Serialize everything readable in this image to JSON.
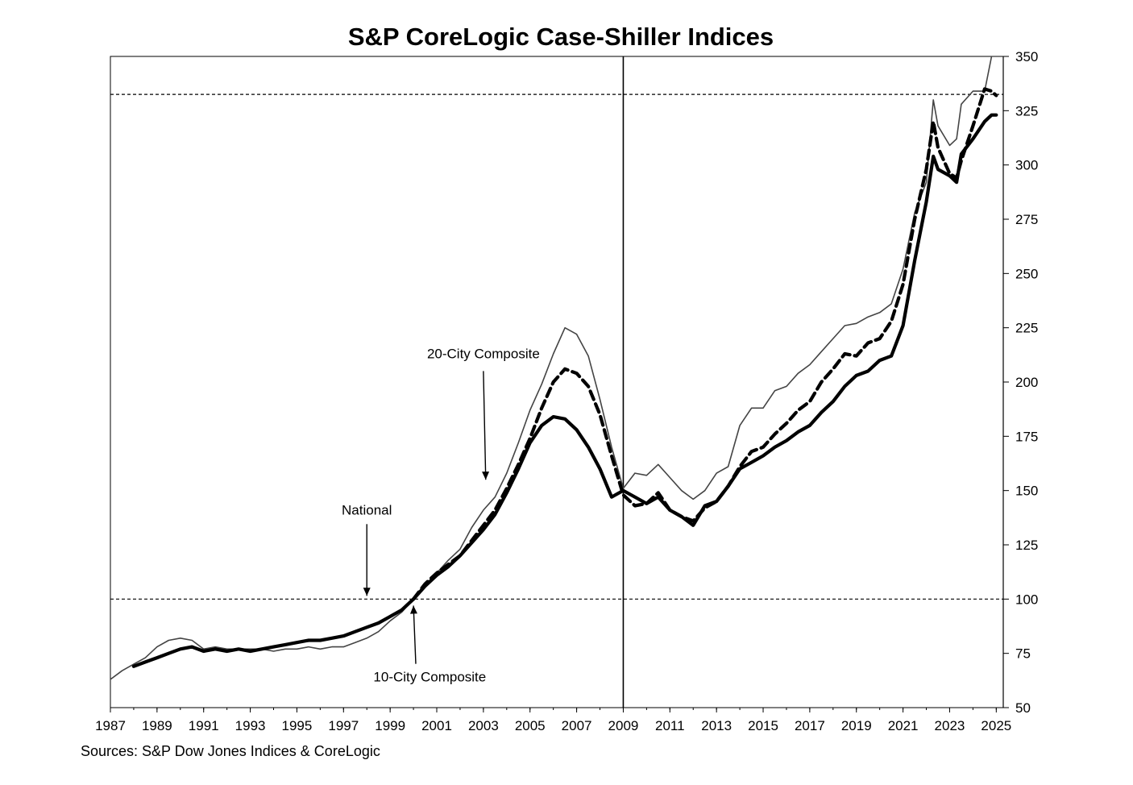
{
  "chart_data": {
    "type": "line",
    "title": "S&P CoreLogic Case-Shiller Indices",
    "source": "Sources:  S&P Dow Jones Indices & CoreLogic",
    "xlim": [
      1987,
      2025.3
    ],
    "ylim": [
      50,
      350
    ],
    "x_ticks": [
      "1987",
      "1989",
      "1991",
      "1993",
      "1995",
      "1997",
      "1999",
      "2001",
      "2003",
      "2005",
      "2007",
      "2009",
      "2011",
      "2013",
      "2015",
      "2017",
      "2019",
      "2021",
      "2023",
      "2025"
    ],
    "y_ticks": [
      "50",
      "75",
      "100",
      "125",
      "150",
      "175",
      "200",
      "225",
      "250",
      "275",
      "300",
      "325",
      "350"
    ],
    "grid": false,
    "reference_lines": [
      {
        "orientation": "horizontal",
        "y": 100,
        "style": "dashed"
      },
      {
        "orientation": "horizontal",
        "y": 332.5,
        "style": "dashed"
      },
      {
        "orientation": "vertical",
        "x": 2009,
        "style": "solid"
      }
    ],
    "annotations": [
      {
        "text": "20-City Composite",
        "x": 2003.0,
        "y": 211
      },
      {
        "text": "National",
        "x": 1998.0,
        "y": 139
      },
      {
        "text": "10-City Composite",
        "x": 2000.7,
        "y": 62
      }
    ],
    "series": [
      {
        "name": "National",
        "style": "thin",
        "color": "#444444",
        "x": [
          1987,
          1987.5,
          1988,
          1988.5,
          1989,
          1989.5,
          1990,
          1990.5,
          1991,
          1991.5,
          1992,
          1992.5,
          1993,
          1993.5,
          1994,
          1994.5,
          1995,
          1995.5,
          1996,
          1996.5,
          1997,
          1997.5,
          1998,
          1998.5,
          1999,
          1999.5,
          2000,
          2000.5,
          2001,
          2001.5,
          2002,
          2002.5,
          2003,
          2003.5,
          2004,
          2004.5,
          2005,
          2005.5,
          2006,
          2006.5,
          2007,
          2007.5,
          2008,
          2008.5,
          2009,
          2009.5,
          2010,
          2010.5,
          2011,
          2011.5,
          2012,
          2012.5,
          2013,
          2013.5,
          2014,
          2014.5,
          2015,
          2015.5,
          2016,
          2016.5,
          2017,
          2017.5,
          2018,
          2018.5,
          2019,
          2019.5,
          2020,
          2020.5,
          2021,
          2021.5,
          2022,
          2022.3,
          2022.5,
          2023,
          2023.3,
          2023.5,
          2024,
          2024.5,
          2024.8
        ],
        "values": [
          63,
          67,
          70,
          73,
          78,
          81,
          82,
          81,
          77,
          78,
          77,
          77,
          77,
          77,
          76,
          77,
          77,
          78,
          77,
          78,
          78,
          80,
          82,
          85,
          90,
          94,
          100,
          106,
          112,
          118,
          123,
          133,
          141,
          147,
          158,
          172,
          187,
          199,
          213,
          225,
          222,
          212,
          192,
          170,
          151,
          158,
          157,
          162,
          156,
          150,
          146,
          150,
          158,
          161,
          180,
          188,
          188,
          196,
          198,
          204,
          208,
          214,
          220,
          226,
          227,
          230,
          232,
          236,
          252,
          278,
          292,
          330,
          318,
          309,
          312,
          328,
          334,
          334,
          350
        ]
      },
      {
        "name": "20-City Composite",
        "style": "dashed",
        "color": "#000000",
        "x": [
          2000,
          2000.5,
          2001,
          2001.5,
          2002,
          2002.5,
          2003,
          2003.5,
          2004,
          2004.5,
          2005,
          2005.5,
          2006,
          2006.5,
          2007,
          2007.5,
          2008,
          2008.5,
          2009,
          2009.5,
          2010,
          2010.5,
          2011,
          2011.5,
          2012,
          2012.5,
          2013,
          2013.5,
          2014,
          2014.5,
          2015,
          2015.5,
          2016,
          2016.5,
          2017,
          2017.5,
          2018,
          2018.5,
          2019,
          2019.5,
          2020,
          2020.5,
          2021,
          2021.5,
          2022,
          2022.3,
          2022.5,
          2023,
          2023.3,
          2023.5,
          2024,
          2024.5,
          2024.8,
          2025
        ],
        "values": [
          100,
          107,
          112,
          116,
          120,
          127,
          134,
          141,
          151,
          162,
          174,
          188,
          200,
          206,
          204,
          198,
          185,
          166,
          148,
          143,
          144,
          149,
          141,
          138,
          136,
          142,
          145,
          152,
          161,
          168,
          170,
          176,
          181,
          187,
          191,
          200,
          206,
          213,
          212,
          218,
          220,
          228,
          245,
          275,
          298,
          320,
          308,
          296,
          294,
          302,
          318,
          335,
          334,
          332
        ]
      },
      {
        "name": "10-City Composite",
        "style": "thick",
        "color": "#000000",
        "x": [
          1988,
          1988.5,
          1989,
          1989.5,
          1990,
          1990.5,
          1991,
          1991.5,
          1992,
          1992.5,
          1993,
          1993.5,
          1994,
          1994.5,
          1995,
          1995.5,
          1996,
          1996.5,
          1997,
          1997.5,
          1998,
          1998.5,
          1999,
          1999.5,
          2000,
          2000.5,
          2001,
          2001.5,
          2002,
          2002.5,
          2003,
          2003.5,
          2004,
          2004.5,
          2005,
          2005.5,
          2006,
          2006.5,
          2007,
          2007.5,
          2008,
          2008.5,
          2009,
          2009.5,
          2010,
          2010.5,
          2011,
          2011.5,
          2012,
          2012.5,
          2013,
          2013.5,
          2014,
          2014.5,
          2015,
          2015.5,
          2016,
          2016.5,
          2017,
          2017.5,
          2018,
          2018.5,
          2019,
          2019.5,
          2020,
          2020.5,
          2021,
          2021.5,
          2022,
          2022.3,
          2022.5,
          2023,
          2023.3,
          2023.5,
          2024,
          2024.5,
          2024.8,
          2025
        ],
        "values": [
          69,
          71,
          73,
          75,
          77,
          78,
          76,
          77,
          76,
          77,
          76,
          77,
          78,
          79,
          80,
          81,
          81,
          82,
          83,
          85,
          87,
          89,
          92,
          95,
          100,
          106,
          111,
          115,
          120,
          126,
          132,
          139,
          149,
          160,
          172,
          180,
          184,
          183,
          178,
          170,
          160,
          147,
          150,
          147,
          144,
          147,
          141,
          138,
          134,
          143,
          145,
          152,
          160,
          163,
          166,
          170,
          173,
          177,
          180,
          186,
          191,
          198,
          203,
          205,
          210,
          212,
          226,
          256,
          283,
          304,
          298,
          295,
          292,
          305,
          312,
          320,
          323,
          323
        ]
      }
    ]
  }
}
